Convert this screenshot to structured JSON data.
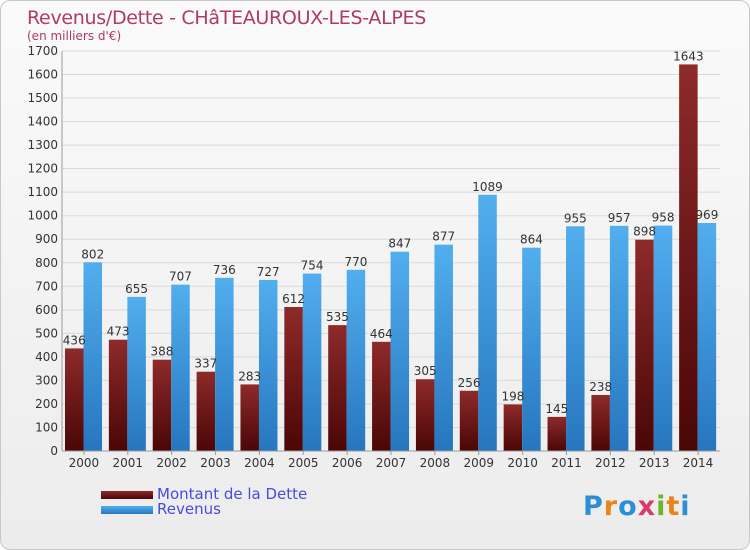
{
  "chart_data": {
    "type": "bar",
    "title": "Revenus/Dette - CHâTEAUROUX-LES-ALPES",
    "subtitle": "(en milliers d'€)",
    "categories": [
      "2000",
      "2001",
      "2002",
      "2003",
      "2004",
      "2005",
      "2006",
      "2007",
      "2008",
      "2009",
      "2010",
      "2011",
      "2012",
      "2013",
      "2014"
    ],
    "series": [
      {
        "name": "Montant de la Dette",
        "color": "#7a1c1c",
        "values": [
          436,
          473,
          388,
          337,
          283,
          612,
          535,
          464,
          305,
          256,
          198,
          145,
          238,
          898,
          1643
        ]
      },
      {
        "name": "Revenus",
        "color": "#3b98df",
        "values": [
          802,
          655,
          707,
          736,
          727,
          754,
          770,
          847,
          877,
          1089,
          864,
          955,
          957,
          958,
          969
        ]
      }
    ],
    "ylim": [
      0,
      1700
    ],
    "yticks": [
      0,
      100,
      200,
      300,
      400,
      500,
      600,
      700,
      800,
      900,
      1000,
      1100,
      1200,
      1300,
      1400,
      1500,
      1600,
      1700
    ],
    "grid": true,
    "legend_position": "bottom-left"
  },
  "logo": {
    "letters": [
      "P",
      "r",
      "o",
      "x",
      "i",
      "t",
      "i"
    ],
    "text": "Proxiti"
  }
}
